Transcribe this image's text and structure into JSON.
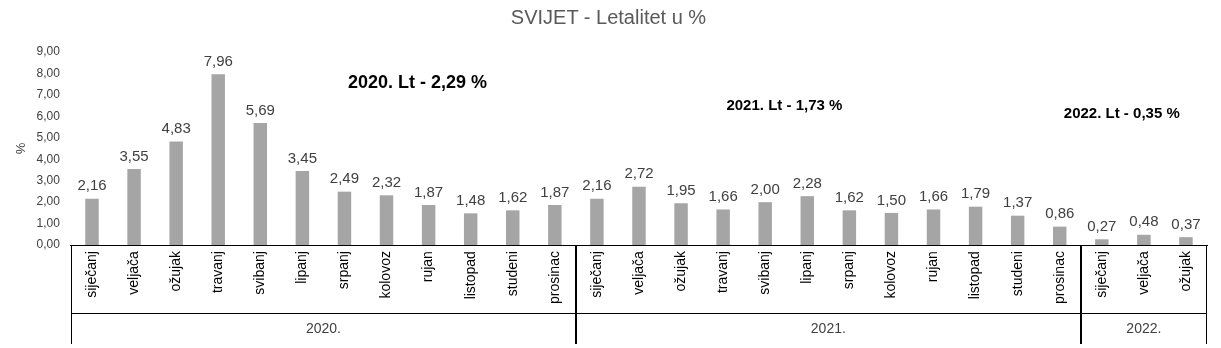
{
  "chart_data": {
    "type": "bar",
    "title": "SVIJET - Letalitet u %",
    "ylabel": "%",
    "categories": [
      "siječanj",
      "veljača",
      "ožujak",
      "travanj",
      "svibanj",
      "lipanj",
      "srpanj",
      "kolovoz",
      "rujan",
      "listopad",
      "studeni",
      "prosinac",
      "siječanj",
      "veljača",
      "ožujak",
      "travanj",
      "svibanj",
      "lipanj",
      "srpanj",
      "kolovoz",
      "rujan",
      "listopad",
      "studeni",
      "prosinac",
      "siječanj",
      "veljača",
      "ožujak"
    ],
    "values": [
      2.16,
      3.55,
      4.83,
      7.96,
      5.69,
      3.45,
      2.49,
      2.32,
      1.87,
      1.48,
      1.62,
      1.87,
      2.16,
      2.72,
      1.95,
      1.66,
      2.0,
      2.28,
      1.62,
      1.5,
      1.66,
      1.79,
      1.37,
      0.86,
      0.27,
      0.48,
      0.37
    ],
    "value_labels": [
      "2,16",
      "3,55",
      "4,83",
      "7,96",
      "5,69",
      "3,45",
      "2,49",
      "2,32",
      "1,87",
      "1,48",
      "1,62",
      "1,87",
      "2,16",
      "2,72",
      "1,95",
      "1,66",
      "2,00",
      "2,28",
      "1,62",
      "1,50",
      "1,66",
      "1,79",
      "1,37",
      "0,86",
      "0,27",
      "0,48",
      "0,37"
    ],
    "color": "#a5a5a5",
    "ylim": [
      0,
      9
    ],
    "yticks": [
      {
        "value": 0,
        "label": "0,00"
      },
      {
        "value": 1,
        "label": "1,00"
      },
      {
        "value": 2,
        "label": "2,00"
      },
      {
        "value": 3,
        "label": "3,00"
      },
      {
        "value": 4,
        "label": "4,00"
      },
      {
        "value": 5,
        "label": "5,00"
      },
      {
        "value": 6,
        "label": "6,00"
      },
      {
        "value": 7,
        "label": "7,00"
      },
      {
        "value": 8,
        "label": "8,00"
      },
      {
        "value": 9,
        "label": "9,00"
      }
    ],
    "grid": false,
    "legend": false,
    "annotations": [
      "2020. Lt - 2,29 %",
      "2021. Lt - 1,73 %",
      "2022. Lt - 0,35 %",
      "2020.",
      "2021.",
      "2022."
    ]
  }
}
